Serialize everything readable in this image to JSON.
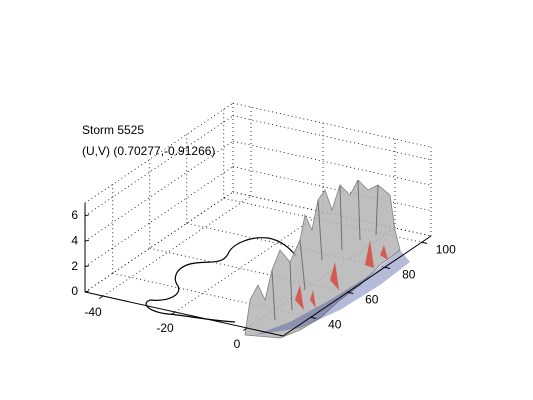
{
  "chart_data": {
    "type": "surface3d",
    "title": "Storm 5525",
    "subtitle": "(U,V) (0.70277,-0.91266)",
    "xlim": [
      -45,
      10
    ],
    "xticks": [
      -40,
      -20,
      0
    ],
    "ylim": [
      25,
      105
    ],
    "yticks": [
      40,
      60,
      80,
      100
    ],
    "zlim": [
      0,
      7
    ],
    "zticks": [
      0,
      2,
      4,
      6
    ],
    "grid": true
  }
}
